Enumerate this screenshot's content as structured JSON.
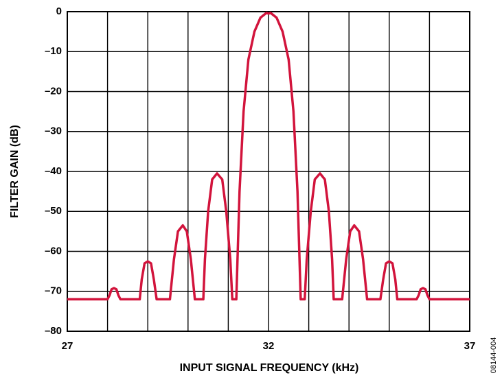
{
  "chart_data": {
    "type": "line",
    "xlabel": "INPUT SIGNAL FREQUENCY (kHz)",
    "ylabel": "FILTER GAIN (dB)",
    "annotation": "08144-004",
    "xlim": [
      27,
      37
    ],
    "ylim": [
      -80,
      0
    ],
    "xticks": [
      27,
      32,
      37
    ],
    "xgrid": [
      28,
      29,
      30,
      31,
      32,
      33,
      34,
      35,
      36
    ],
    "yticks": [
      0,
      {
        "value": -10,
        "label": "–10"
      },
      {
        "value": -20,
        "label": "–20"
      },
      {
        "value": -30,
        "label": "–30"
      },
      {
        "value": -40,
        "label": "–40"
      },
      {
        "value": -50,
        "label": "–50"
      },
      {
        "value": -60,
        "label": "–60"
      },
      {
        "value": -70,
        "label": "–70"
      },
      {
        "value": -80,
        "label": "–80"
      }
    ],
    "grid": true,
    "x": [
      27,
      28.0,
      28.05,
      28.1,
      28.16,
      28.22,
      28.27,
      28.32,
      28.8,
      28.85,
      28.92,
      29.0,
      29.08,
      29.15,
      29.22,
      29.55,
      29.65,
      29.75,
      29.87,
      29.97,
      30.07,
      30.17,
      30.38,
      30.42,
      30.5,
      30.6,
      30.72,
      30.85,
      30.95,
      31.05,
      31.1,
      31.2,
      31.28,
      31.38,
      31.5,
      31.65,
      31.8,
      31.95,
      32.0,
      32.05,
      32.2,
      32.35,
      32.5,
      32.62,
      32.72,
      32.8,
      32.9,
      32.95,
      33.05,
      33.15,
      33.28,
      33.4,
      33.5,
      33.58,
      33.62,
      33.83,
      33.93,
      34.03,
      34.13,
      34.25,
      34.35,
      34.45,
      34.78,
      34.85,
      34.92,
      35.0,
      35.08,
      35.15,
      35.2,
      35.68,
      35.73,
      35.78,
      35.84,
      35.9,
      35.95,
      36.0,
      37
    ],
    "series": [
      {
        "color": "#d2143c",
        "values": [
          -72,
          -72,
          -71,
          -69.5,
          -69.2,
          -69.5,
          -71,
          -72,
          -72,
          -67,
          -63,
          -62.5,
          -63,
          -67,
          -72,
          -72,
          -62,
          -55,
          -53.5,
          -55,
          -62,
          -72,
          -72,
          -62,
          -50,
          -42,
          -40.5,
          -42,
          -50,
          -62,
          -72,
          -72,
          -45,
          -25,
          -12,
          -5,
          -1.5,
          -0.3,
          -0.5,
          -0.3,
          -1.5,
          -5,
          -12,
          -25,
          -45,
          -72,
          -72,
          -62,
          -50,
          -42,
          -40.5,
          -42,
          -50,
          -62,
          -72,
          -72,
          -62,
          -55,
          -53.5,
          -55,
          -62,
          -72,
          -72,
          -67,
          -63,
          -62.5,
          -63,
          -67,
          -72,
          -72,
          -71,
          -69.5,
          -69.2,
          -69.5,
          -71,
          -72,
          -72
        ]
      }
    ]
  }
}
